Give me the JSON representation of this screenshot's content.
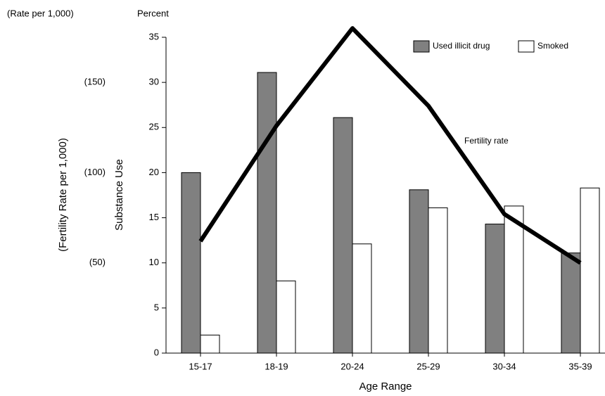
{
  "chart_data": {
    "type": "bar",
    "title": "Percent",
    "y2_title": "(Rate per 1,000)",
    "ylabel": "Substance Use",
    "y2label": "(Fertility Rate per 1,000)",
    "xlabel": "Age Range",
    "annotation": "Fertility rate",
    "categories": [
      "15-17",
      "18-19",
      "20-24",
      "25-29",
      "30-34",
      "35-39"
    ],
    "series": [
      {
        "name": "Used illicit drug",
        "color": "#808080",
        "values": [
          20,
          31.1,
          26.1,
          18.1,
          14.3,
          11.1
        ]
      },
      {
        "name": "Smoked",
        "color": "#ffffff",
        "values": [
          2,
          8,
          12.1,
          16.1,
          16.3,
          18.3
        ]
      },
      {
        "name": "Fertility rate",
        "type": "line",
        "axis": "y2",
        "color": "#000000",
        "values": [
          62,
          126,
          180,
          137,
          77,
          50
        ]
      }
    ],
    "ylim": [
      0,
      35
    ],
    "yticks": [
      0,
      5,
      10,
      15,
      20,
      25,
      30,
      35
    ],
    "y2lim": [
      0,
      175
    ],
    "y2ticks": [
      {
        "value": 50,
        "label": "(50)"
      },
      {
        "value": 100,
        "label": "(100)"
      },
      {
        "value": 150,
        "label": "(150)"
      }
    ],
    "legend": "top-right"
  }
}
